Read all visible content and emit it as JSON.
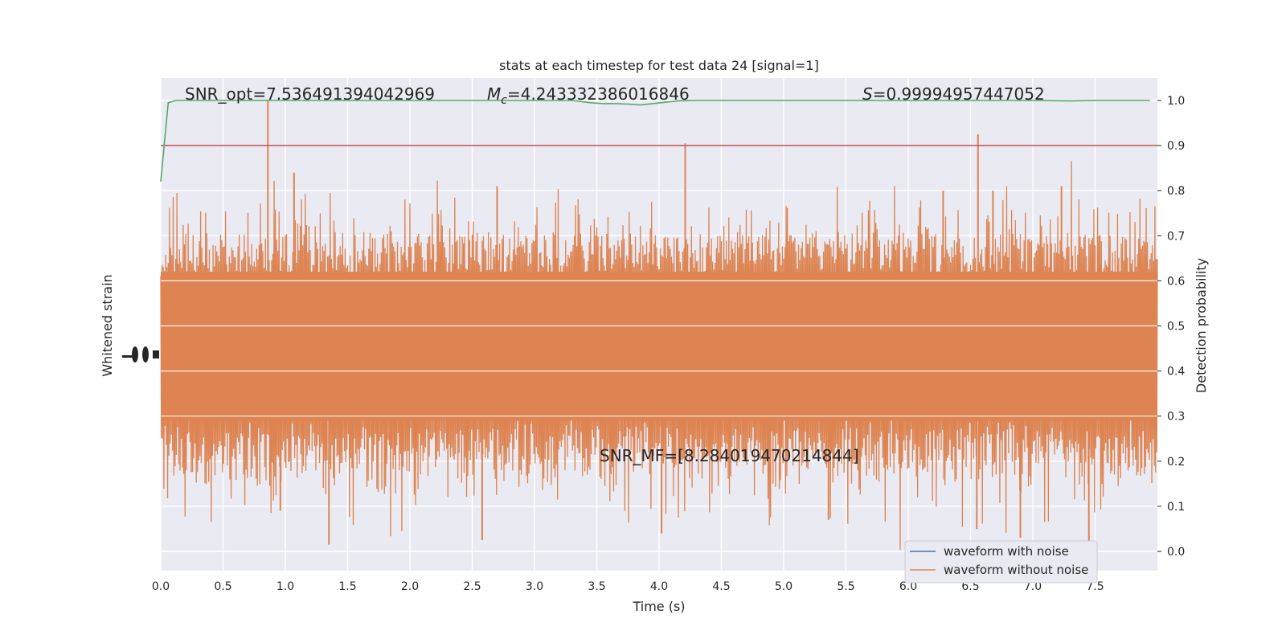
{
  "chart_data": {
    "type": "line",
    "title": "stats at each timestep for test data 24 [signal=1]",
    "xlabel": "Time (s)",
    "ylabel_left": "Whitened strain",
    "ylabel_right": "Detection probability",
    "xlim": [
      0,
      8
    ],
    "ylim_right": [
      -0.05,
      1.05
    ],
    "xticks": [
      "0.0",
      "0.5",
      "1.0",
      "1.5",
      "2.0",
      "2.5",
      "3.0",
      "3.5",
      "4.0",
      "4.5",
      "5.0",
      "5.5",
      "6.0",
      "6.5",
      "7.0",
      "7.5"
    ],
    "yticks_right": [
      "0.0",
      "0.1",
      "0.2",
      "0.3",
      "0.4",
      "0.5",
      "0.6",
      "0.7",
      "0.8",
      "0.9",
      "1.0"
    ],
    "threshold": 0.9,
    "annotations": {
      "snr_opt": "SNR_opt=7.536491394042969",
      "mc_symbol": "M",
      "mc_sub": "c",
      "mc_value": "=4.243332386016846",
      "s_symbol": "S",
      "s_value": "=0.99994957447052",
      "snr_mf": "SNR_MF=[8.284019470214844]"
    },
    "detection_probability": {
      "x": [
        0.0,
        0.06,
        0.12,
        0.5,
        1.0,
        1.5,
        2.0,
        2.5,
        3.0,
        3.3,
        3.45,
        3.55,
        3.65,
        3.75,
        3.85,
        3.95,
        4.05,
        4.15,
        4.3,
        5.0,
        6.0,
        6.5,
        7.0,
        7.3,
        7.5,
        7.94
      ],
      "y": [
        0.82,
        0.995,
        1.0,
        1.0,
        1.0,
        1.0,
        1.0,
        1.0,
        1.0,
        1.0,
        0.995,
        0.993,
        0.993,
        0.992,
        0.99,
        0.993,
        0.996,
        0.999,
        1.0,
        1.0,
        1.0,
        1.0,
        1.0,
        0.999,
        1.0,
        1.0
      ]
    },
    "noise_waveform_spikes": {
      "up": [
        [
          0.86,
          1.0
        ],
        [
          4.21,
          0.905
        ],
        [
          6.56,
          0.925
        ],
        [
          1.07,
          0.84
        ],
        [
          2.7,
          0.81
        ],
        [
          6.28,
          0.8
        ],
        [
          6.68,
          0.8
        ],
        [
          7.23,
          0.81
        ]
      ],
      "down": [
        [
          1.35,
          0.015
        ],
        [
          2.58,
          0.025
        ],
        [
          4.02,
          0.04
        ],
        [
          6.55,
          0.05
        ],
        [
          6.9,
          0.03
        ],
        [
          7.45,
          0.02
        ],
        [
          0.96,
          0.09
        ],
        [
          5.36,
          0.07
        ]
      ]
    },
    "series": [
      {
        "name": "waveform with noise",
        "color": "#4c72b0"
      },
      {
        "name": "waveform without noise",
        "color": "#dd8452"
      },
      {
        "name": "detection probability",
        "color": "#55a868"
      },
      {
        "name": "threshold",
        "color": "#c44e52"
      }
    ]
  }
}
